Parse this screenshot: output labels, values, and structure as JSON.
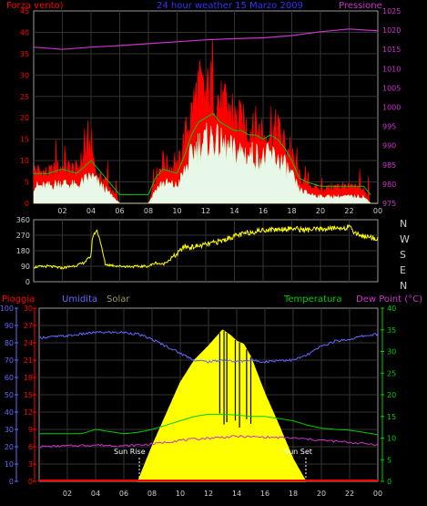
{
  "colors": {
    "wind": "#ff0000",
    "pressure": "#cc33cc",
    "title": "#3333ff",
    "direction": "#ffff00",
    "rain": "#ff0000",
    "humidity": "#6666ff",
    "solar": "#ffff00",
    "temperature": "#00cc00",
    "dewpoint": "#cc33cc",
    "axis_green": "#00cc00",
    "grid": "#333333"
  },
  "chart_data": [
    {
      "type": "area",
      "title": "24 hour weather   15 Marzo 2009",
      "ylabel_left": "Forza vento)",
      "ylabel_right": "Pressione",
      "x_ticks": [
        "02",
        "04",
        "06",
        "08",
        "10",
        "12",
        "14",
        "16",
        "18",
        "20",
        "22",
        "00"
      ],
      "y_left_ticks": [
        "45",
        "40",
        "35",
        "30",
        "25",
        "20",
        "15",
        "10",
        "5",
        "0"
      ],
      "y_right_ticks": [
        "1025",
        "1020",
        "1015",
        "1010",
        "1005",
        "1000",
        "995",
        "990",
        "985",
        "980",
        "975"
      ],
      "ylim_left": [
        0,
        45
      ],
      "ylim_right": [
        975,
        1025
      ],
      "xlim": [
        0,
        24
      ],
      "grid": true,
      "series": [
        {
          "name": "Forza vento)",
          "unit": "gust",
          "x": [
            0,
            1,
            2,
            3,
            4,
            4.4,
            5,
            6,
            7,
            8,
            8.5,
            9,
            10,
            10.5,
            11,
            11.5,
            12,
            12.5,
            13,
            13.5,
            14,
            14.5,
            15,
            15.5,
            16,
            16.5,
            17,
            17.5,
            18,
            18.5,
            19,
            20,
            21,
            22,
            23,
            23.5
          ],
          "values": [
            10,
            9,
            11,
            10,
            18,
            8,
            7,
            0,
            0,
            0,
            8,
            12,
            10,
            19,
            27,
            35,
            32,
            36,
            30,
            27,
            25,
            24,
            22,
            23,
            20,
            22,
            22,
            18,
            14,
            8,
            6,
            4,
            5,
            5,
            4,
            0
          ]
        },
        {
          "name": "Forza vento)",
          "unit": "average",
          "x": [
            0,
            1,
            2,
            3,
            4,
            5,
            6,
            7,
            8,
            8.5,
            9,
            10,
            10.5,
            11,
            11.5,
            12,
            12.5,
            13,
            13.5,
            14,
            14.5,
            15,
            15.5,
            16,
            16.5,
            17,
            17.5,
            18,
            18.5,
            19,
            20,
            21,
            22,
            23,
            23.5
          ],
          "values": [
            5,
            5,
            6,
            5,
            8,
            4,
            0,
            0,
            0,
            4,
            6,
            5,
            9,
            14,
            17,
            18,
            19,
            17,
            16,
            15,
            15,
            14,
            14,
            13,
            14,
            13,
            11,
            8,
            4,
            3,
            2,
            2,
            2,
            2,
            0
          ]
        },
        {
          "name": "Pressione",
          "x": [
            0,
            2,
            4,
            6,
            8,
            10,
            12,
            14,
            16,
            18,
            20,
            22,
            24
          ],
          "values": [
            1015.6,
            1015,
            1015.6,
            1016,
            1016.5,
            1017,
            1017.5,
            1017.8,
            1018,
            1018.6,
            1019.6,
            1020.3,
            1019.8
          ]
        }
      ]
    },
    {
      "type": "line",
      "y_ticks": [
        "360",
        "270",
        "180",
        "90",
        "0"
      ],
      "ylim": [
        0,
        360
      ],
      "xlim": [
        0,
        24
      ],
      "compass_labels": [
        "N",
        "W",
        "S",
        "E",
        "N"
      ],
      "grid": true,
      "series": [
        {
          "x": [
            0,
            1,
            2,
            3,
            3.5,
            4,
            4.1,
            4.4,
            4.6,
            5,
            6,
            7,
            8,
            8.5,
            9,
            9.5,
            10,
            10.5,
            11,
            12,
            13,
            14,
            15,
            16,
            17,
            18,
            19,
            20,
            21,
            22,
            22.5,
            23,
            24
          ],
          "values": [
            85,
            90,
            80,
            95,
            110,
            150,
            260,
            300,
            250,
            100,
            90,
            88,
            90,
            110,
            100,
            130,
            160,
            205,
            200,
            215,
            235,
            265,
            285,
            300,
            305,
            310,
            300,
            305,
            310,
            315,
            280,
            265,
            250
          ]
        }
      ]
    },
    {
      "type": "area",
      "ylabel_rain": "Pioggia",
      "ylabel_humidity": "Umidita",
      "ylabel_solar": "Solar",
      "ylabel_temperature": "Temperatura",
      "ylabel_dewpoint": "Dew Point (°C)",
      "sunrise_label": "Sun Rise",
      "sunset_label": "Sun Set",
      "sunrise_hour": 7.1,
      "sunset_hour": 18.9,
      "x_ticks": [
        "02",
        "04",
        "06",
        "08",
        "10",
        "12",
        "14",
        "16",
        "18",
        "20",
        "22",
        "00"
      ],
      "humidity_ticks": [
        "100",
        "90",
        "80",
        "70",
        "60",
        "50",
        "40",
        "30",
        "20",
        "10",
        "0"
      ],
      "rain_ticks": [
        "30",
        "27",
        "24",
        "21",
        "18",
        "15",
        "12",
        "9",
        "6",
        "3",
        "0"
      ],
      "solar_ticks": [
        "",
        "",
        "",
        "",
        "",
        "",
        "",
        "",
        "",
        "",
        ""
      ],
      "temp_ticks": [
        "40",
        "35",
        "30",
        "25",
        "20",
        "15",
        "10",
        "5",
        "0"
      ],
      "ylim_humidity": [
        0,
        100
      ],
      "ylim_temperature": [
        0,
        40
      ],
      "xlim": [
        0,
        24
      ],
      "grid": true,
      "series": [
        {
          "name": "Umidita",
          "x": [
            0,
            2,
            4,
            6,
            7,
            8,
            9,
            10,
            11,
            12,
            13,
            14,
            15,
            16,
            17,
            18,
            19,
            20,
            21,
            22,
            23,
            24
          ],
          "values": [
            83,
            84,
            86,
            86,
            85,
            82,
            78,
            74,
            70,
            69,
            70,
            69,
            70,
            69,
            70,
            70,
            73,
            78,
            81,
            82,
            84,
            85
          ]
        },
        {
          "name": "Temperatura",
          "x": [
            0,
            2,
            3,
            4,
            5,
            6,
            7,
            8,
            9,
            10,
            11,
            12,
            13,
            14,
            15,
            16,
            17,
            18,
            19,
            20,
            21,
            22,
            23,
            24
          ],
          "values": [
            11,
            11,
            11,
            12,
            11.5,
            11,
            11.3,
            12,
            13,
            14,
            15,
            15.5,
            15.5,
            15.3,
            15,
            15,
            14.5,
            14,
            13,
            12.3,
            12,
            11.8,
            11.3,
            10.8
          ]
        },
        {
          "name": "Dew Point (°C)",
          "x": [
            0,
            2,
            4,
            6,
            8,
            10,
            12,
            14,
            16,
            18,
            20,
            22,
            24
          ],
          "values": [
            8,
            8.2,
            8.4,
            8.2,
            8.6,
            9.5,
            10,
            10.4,
            10.2,
            10,
            9.5,
            9,
            8.5
          ]
        },
        {
          "name": "Solar",
          "x": [
            7,
            8,
            9,
            10,
            11,
            12,
            12.5,
            13,
            13.5,
            14,
            14.5,
            15,
            16,
            17,
            18,
            18.9
          ],
          "values": [
            0,
            22,
            42,
            62,
            76,
            85,
            90,
            95,
            92,
            88,
            86,
            78,
            55,
            35,
            14,
            0
          ]
        },
        {
          "name": "Pioggia",
          "x": [
            0,
            24
          ],
          "values": [
            0,
            0
          ]
        }
      ]
    }
  ]
}
